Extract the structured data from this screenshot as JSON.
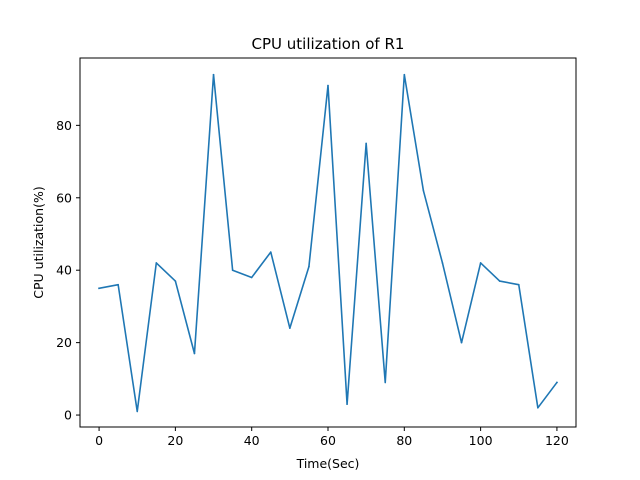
{
  "chart_data": {
    "type": "line",
    "title": "CPU utilization of R1",
    "xlabel": "Time(Sec)",
    "ylabel": "CPU utilization(%)",
    "xlim": [
      -5,
      125
    ],
    "ylim": [
      -3.3,
      98.6
    ],
    "x_ticks": [
      0,
      20,
      40,
      60,
      80,
      100,
      120
    ],
    "y_ticks": [
      0,
      20,
      40,
      60,
      80
    ],
    "grid": false,
    "series": [
      {
        "color": "#1f77b4",
        "x": [
          0,
          5,
          10,
          15,
          20,
          25,
          30,
          35,
          40,
          45,
          50,
          55,
          60,
          65,
          70,
          75,
          80,
          85,
          90,
          95,
          100,
          105,
          110,
          115,
          120
        ],
        "y": [
          35,
          36,
          1,
          42,
          37,
          17,
          94,
          40,
          38,
          45,
          24,
          41,
          91,
          3,
          75,
          9,
          94,
          62,
          42,
          20,
          42,
          37,
          36,
          2,
          9
        ]
      }
    ]
  }
}
